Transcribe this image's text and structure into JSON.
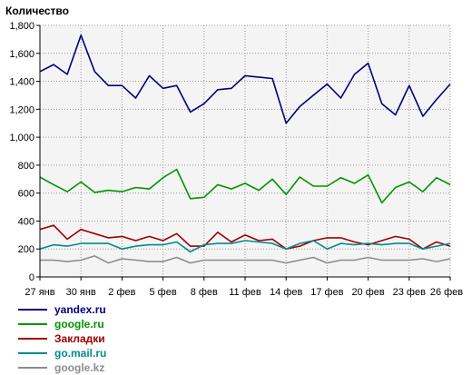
{
  "chart_data": {
    "type": "line",
    "ylabel": "Количество",
    "ylim": [
      0,
      1800
    ],
    "y_ticks": [
      0,
      200,
      400,
      600,
      800,
      1000,
      1200,
      1400,
      1600,
      1800
    ],
    "y_tick_labels": [
      "0",
      "200",
      "400",
      "600",
      "800",
      "1,000",
      "1,200",
      "1,400",
      "1,600",
      "1,800"
    ],
    "x_tick_labels": [
      {
        "index": 0,
        "label": "27 янв"
      },
      {
        "index": 3,
        "label": "30 янв"
      },
      {
        "index": 6,
        "label": "2 фев"
      },
      {
        "index": 9,
        "label": "5 фев"
      },
      {
        "index": 12,
        "label": "8 фев"
      },
      {
        "index": 15,
        "label": "11 фев"
      },
      {
        "index": 18,
        "label": "14 фев"
      },
      {
        "index": 21,
        "label": "17 фев"
      },
      {
        "index": 24,
        "label": "20 фев"
      },
      {
        "index": 27,
        "label": "23 фев"
      },
      {
        "index": 30,
        "label": "26 фев"
      }
    ],
    "grid": true,
    "legend_position": "bottom-left",
    "series": [
      {
        "name": "yandex.ru",
        "color": "#00007f",
        "values": [
          1470,
          1520,
          1450,
          1730,
          1470,
          1370,
          1370,
          1280,
          1440,
          1350,
          1370,
          1180,
          1240,
          1340,
          1350,
          1440,
          1430,
          1420,
          1100,
          1220,
          1300,
          1380,
          1280,
          1450,
          1530,
          1240,
          1160,
          1370,
          1150,
          1270,
          1380
        ]
      },
      {
        "name": "google.ru",
        "color": "#009400",
        "values": [
          715,
          660,
          610,
          680,
          605,
          620,
          610,
          640,
          630,
          710,
          770,
          560,
          570,
          660,
          630,
          670,
          620,
          700,
          590,
          715,
          650,
          650,
          710,
          670,
          730,
          530,
          640,
          680,
          610,
          710,
          660
        ]
      },
      {
        "name": "Закладки",
        "color": "#a00000",
        "values": [
          340,
          370,
          270,
          340,
          310,
          280,
          290,
          260,
          290,
          260,
          310,
          220,
          220,
          320,
          250,
          300,
          260,
          270,
          200,
          220,
          260,
          280,
          280,
          250,
          230,
          260,
          290,
          270,
          200,
          250,
          220
        ]
      },
      {
        "name": "go.mail.ru",
        "color": "#008b8b",
        "values": [
          200,
          230,
          220,
          240,
          240,
          240,
          200,
          220,
          230,
          230,
          250,
          180,
          230,
          240,
          240,
          260,
          250,
          240,
          200,
          240,
          260,
          200,
          240,
          230,
          240,
          230,
          240,
          240,
          200,
          220,
          240
        ]
      },
      {
        "name": "google.kz",
        "color": "#8c8c8c",
        "values": [
          120,
          120,
          110,
          120,
          150,
          100,
          130,
          120,
          110,
          110,
          140,
          100,
          120,
          120,
          120,
          120,
          120,
          120,
          100,
          120,
          140,
          100,
          120,
          120,
          140,
          120,
          120,
          120,
          130,
          110,
          130
        ]
      }
    ]
  }
}
